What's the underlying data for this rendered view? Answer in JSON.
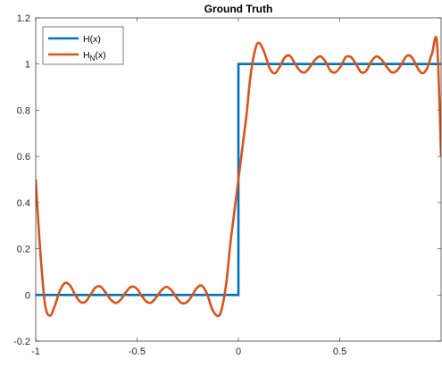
{
  "chart_data": {
    "type": "line",
    "title": "Ground Truth",
    "xlabel": "",
    "ylabel": "",
    "xlim": [
      -1,
      1
    ],
    "ylim": [
      -0.2,
      1.2
    ],
    "xticks": [
      -1,
      -0.5,
      0,
      0.5
    ],
    "xtick_labels": [
      "-1",
      "-0.5",
      "0",
      "0.5"
    ],
    "yticks": [
      -0.2,
      0,
      0.2,
      0.4,
      0.6,
      0.8,
      1,
      1.2
    ],
    "ytick_labels": [
      "-0.2",
      "0",
      "0.2",
      "0.4",
      "0.6",
      "0.8",
      "1",
      "1.2"
    ],
    "grid": false,
    "legend_position": "top-left",
    "series": [
      {
        "name": "H(x)",
        "legend_main": "H",
        "legend_sub": "",
        "legend_suffix": "(x)",
        "color": "#0072BD",
        "x": [
          -1,
          0,
          0,
          1
        ],
        "y": [
          0,
          0,
          1,
          1
        ]
      },
      {
        "name": "H_N(x)",
        "legend_main": "H",
        "legend_sub": "N",
        "legend_suffix": "(x)",
        "color": "#D95319",
        "x": [
          -1.0,
          -0.98,
          -0.955,
          -0.93,
          -0.905,
          -0.88,
          -0.855,
          -0.83,
          -0.805,
          -0.78,
          -0.755,
          -0.73,
          -0.705,
          -0.68,
          -0.655,
          -0.63,
          -0.605,
          -0.58,
          -0.555,
          -0.53,
          -0.505,
          -0.48,
          -0.455,
          -0.43,
          -0.405,
          -0.38,
          -0.355,
          -0.33,
          -0.305,
          -0.28,
          -0.255,
          -0.23,
          -0.205,
          -0.18,
          -0.155,
          -0.13,
          -0.105,
          -0.085,
          -0.06,
          -0.04,
          -0.02,
          0.0,
          0.02,
          0.04,
          0.06,
          0.085,
          0.105,
          0.13,
          0.155,
          0.18,
          0.205,
          0.23,
          0.255,
          0.28,
          0.305,
          0.33,
          0.355,
          0.38,
          0.405,
          0.43,
          0.455,
          0.48,
          0.505,
          0.53,
          0.555,
          0.58,
          0.605,
          0.63,
          0.655,
          0.68,
          0.705,
          0.73,
          0.755,
          0.78,
          0.805,
          0.83,
          0.855,
          0.88,
          0.905,
          0.93,
          0.955,
          0.98,
          1.0
        ],
        "y": [
          0.5,
          0.22,
          -0.035,
          -0.09,
          -0.045,
          0.02,
          0.052,
          0.04,
          0.0,
          -0.03,
          -0.03,
          0.0,
          0.032,
          0.036,
          0.01,
          -0.02,
          -0.035,
          -0.02,
          0.012,
          0.035,
          0.03,
          0.0,
          -0.028,
          -0.033,
          -0.01,
          0.02,
          0.035,
          0.02,
          -0.012,
          -0.035,
          -0.032,
          -0.005,
          0.03,
          0.04,
          0.005,
          -0.06,
          -0.09,
          -0.07,
          0.05,
          0.22,
          0.36,
          0.5,
          0.64,
          0.78,
          0.95,
          1.07,
          1.09,
          1.045,
          0.98,
          0.96,
          0.99,
          1.03,
          1.035,
          1.0,
          0.97,
          0.965,
          0.99,
          1.02,
          1.033,
          1.01,
          0.97,
          0.965,
          0.99,
          1.03,
          1.03,
          1.0,
          0.965,
          0.97,
          1.01,
          1.033,
          1.02,
          0.99,
          0.965,
          0.97,
          1.0,
          1.035,
          1.03,
          0.99,
          0.96,
          0.98,
          1.045,
          1.09,
          0.6
        ]
      }
    ]
  }
}
